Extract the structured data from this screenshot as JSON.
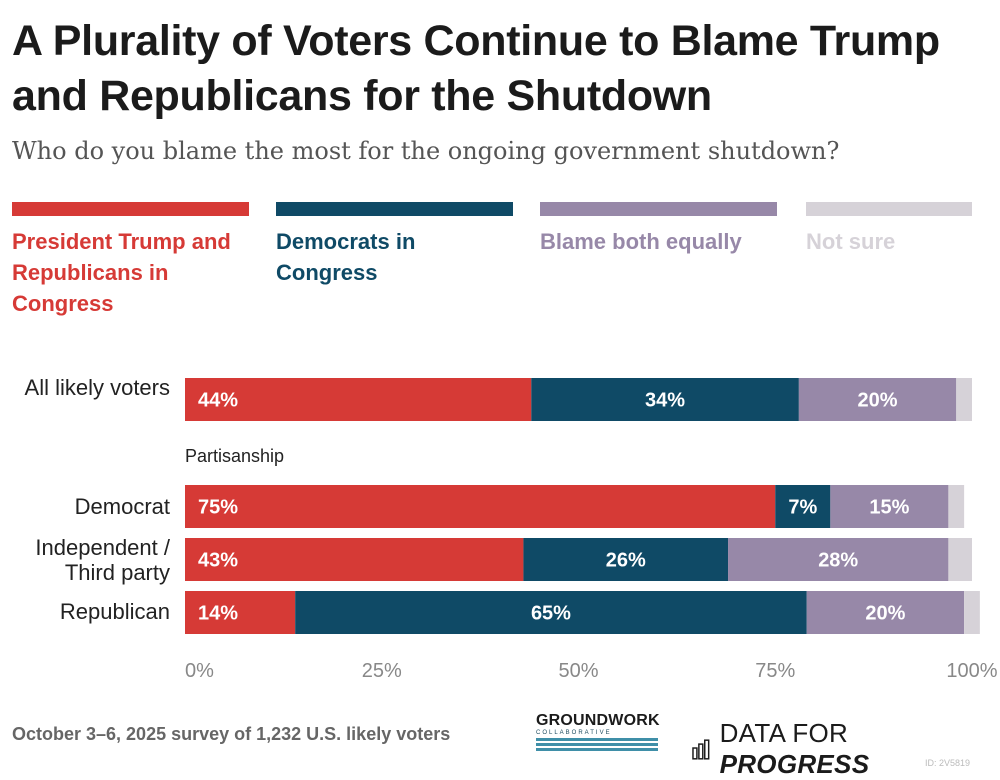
{
  "title": "A Plurality of Voters Continue to Blame Trump and Republicans for the Shutdown",
  "subtitle": "Who do you blame the most for the ongoing government shutdown?",
  "legend": [
    {
      "label": "President Trump and Republicans in Congress",
      "color": "#d63a36"
    },
    {
      "label": "Democrats in Congress",
      "color": "#0f4a66"
    },
    {
      "label": "Blame both equally",
      "color": "#9788a8"
    },
    {
      "label": "Not sure",
      "color": "#d6d2d8"
    }
  ],
  "group_label": "Partisanship",
  "row_labels": {
    "all": "All likely voters",
    "dem": "Democrat",
    "ind": "Independent / Third party",
    "rep": "Republican"
  },
  "chart_data": {
    "type": "bar",
    "orientation": "horizontal",
    "stacked": true,
    "categories": [
      "All likely voters",
      "Democrat",
      "Independent / Third party",
      "Republican"
    ],
    "series": [
      {
        "name": "President Trump and Republicans in Congress",
        "color": "#d63a36",
        "values": [
          44,
          75,
          43,
          14
        ]
      },
      {
        "name": "Democrats in Congress",
        "color": "#0f4a66",
        "values": [
          34,
          7,
          26,
          65
        ]
      },
      {
        "name": "Blame both equally",
        "color": "#9788a8",
        "values": [
          20,
          15,
          28,
          20
        ]
      },
      {
        "name": "Not sure",
        "color": "#d6d2d8",
        "values": [
          2,
          2,
          3,
          2
        ]
      }
    ],
    "data_labels": [
      [
        "44%",
        "34%",
        "20%",
        null
      ],
      [
        "75%",
        "7%",
        "15%",
        null
      ],
      [
        "43%",
        "26%",
        "28%",
        null
      ],
      [
        "14%",
        "65%",
        "20%",
        null
      ]
    ],
    "x_ticks": [
      "0%",
      "25%",
      "50%",
      "75%",
      "100%"
    ],
    "xlim": [
      0,
      100
    ]
  },
  "footer": {
    "note": "October 3–6, 2025 survey of 1,232 U.S. likely voters",
    "groundwork_name": "GROUNDWORK",
    "groundwork_sub": "COLLABORATIVE",
    "dfp_regular": "DATA FOR ",
    "dfp_bold": "PROGRESS",
    "id_tag": "ID: 2V5819"
  }
}
